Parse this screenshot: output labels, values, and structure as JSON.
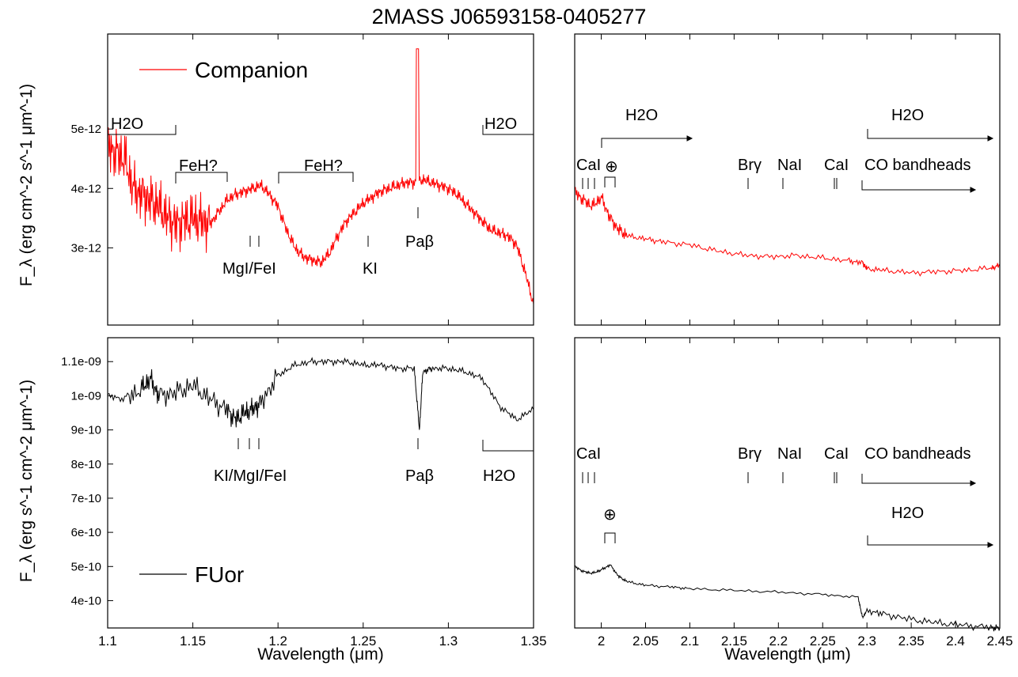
{
  "figure": {
    "title": "2MASS J06593158-0405277",
    "xlabel": "Wavelength (μm)",
    "ylabel_top": "F_λ (erg cm^-2 s^-1 μm^-1)",
    "ylabel_bottom": "F_λ (erg s^-1 cm^-2 μm^-1)"
  },
  "colors": {
    "companion": "#ff0000",
    "fuor": "#000000",
    "axes": "#000000"
  },
  "chart_data": [
    {
      "type": "line",
      "panel": "top-left",
      "xlim": [
        1.1,
        1.35
      ],
      "ylim": [
        1.7e-12,
        6.6e-12
      ],
      "x_ticks": [
        1.1,
        1.15,
        1.2,
        1.25,
        1.3,
        1.35
      ],
      "x_tick_labels": [
        "1.1",
        "1.15",
        "1.2",
        "1.25",
        "1.3",
        "1.35"
      ],
      "y_ticks": [
        3e-12,
        4e-12,
        5e-12
      ],
      "y_tick_labels": [
        "3e-12",
        "4e-12",
        "5e-12"
      ],
      "legend": {
        "label": "Companion",
        "position": "top-left"
      },
      "series": [
        {
          "name": "Companion",
          "x": [
            1.1,
            1.105,
            1.11,
            1.115,
            1.12,
            1.125,
            1.13,
            1.135,
            1.14,
            1.145,
            1.15,
            1.155,
            1.16,
            1.165,
            1.17,
            1.175,
            1.18,
            1.185,
            1.19,
            1.195,
            1.2,
            1.205,
            1.21,
            1.215,
            1.22,
            1.225,
            1.23,
            1.235,
            1.24,
            1.245,
            1.25,
            1.255,
            1.26,
            1.265,
            1.27,
            1.275,
            1.28,
            1.285,
            1.29,
            1.295,
            1.3,
            1.305,
            1.31,
            1.315,
            1.32,
            1.325,
            1.33,
            1.335,
            1.34,
            1.345,
            1.35
          ],
          "y": [
            4.7e-12,
            4.6e-12,
            4.5e-12,
            4e-12,
            3.9e-12,
            3.8e-12,
            3.7e-12,
            3.5e-12,
            3.4e-12,
            3.45e-12,
            3.5e-12,
            3.45e-12,
            3.4e-12,
            3.6e-12,
            3.8e-12,
            3.9e-12,
            3.95e-12,
            4e-12,
            4.05e-12,
            3.9e-12,
            3.7e-12,
            3.3e-12,
            3e-12,
            2.85e-12,
            2.8e-12,
            2.75e-12,
            2.9e-12,
            3.2e-12,
            3.45e-12,
            3.6e-12,
            3.75e-12,
            3.85e-12,
            3.95e-12,
            4e-12,
            4.05e-12,
            4.1e-12,
            4.1e-12,
            4.15e-12,
            4.1e-12,
            4.05e-12,
            4e-12,
            3.9e-12,
            3.75e-12,
            3.6e-12,
            3.45e-12,
            3.3e-12,
            3.25e-12,
            3.2e-12,
            3.05e-12,
            2.6e-12,
            2.05e-12
          ],
          "emission_peak": {
            "x": 1.282,
            "y": 6.35e-12
          }
        }
      ],
      "annotations": [
        "H2O",
        "FeH?",
        "FeH?",
        "MgI/FeI",
        "KI",
        "Paβ",
        "H2O"
      ]
    },
    {
      "type": "line",
      "panel": "top-right",
      "xlim": [
        1.97,
        2.45
      ],
      "ylim": [
        1.7e-12,
        6.6e-12
      ],
      "series": [
        {
          "name": "Companion",
          "x": [
            1.97,
            1.98,
            1.99,
            2.0,
            2.01,
            2.02,
            2.03,
            2.05,
            2.07,
            2.1,
            2.13,
            2.16,
            2.19,
            2.22,
            2.25,
            2.28,
            2.295,
            2.3,
            2.32,
            2.35,
            2.38,
            2.41,
            2.44,
            2.45
          ],
          "y": [
            3.95e-12,
            3.8e-12,
            3.7e-12,
            3.85e-12,
            3.5e-12,
            3.3e-12,
            3.2e-12,
            3.15e-12,
            3.1e-12,
            3.05e-12,
            2.95e-12,
            2.88e-12,
            2.85e-12,
            2.87e-12,
            2.83e-12,
            2.78e-12,
            2.75e-12,
            2.65e-12,
            2.62e-12,
            2.58e-12,
            2.6e-12,
            2.62e-12,
            2.66e-12,
            2.7e-12
          ]
        }
      ],
      "annotations": [
        "H2O",
        "H2O",
        "CaI",
        "⊕",
        "Brγ",
        "NaI",
        "CaI",
        "CO bandheads"
      ]
    },
    {
      "type": "line",
      "panel": "bottom-left",
      "xlim": [
        1.1,
        1.35
      ],
      "ylim": [
        3.2e-10,
        1.17e-09
      ],
      "y_ticks": [
        4e-10,
        5e-10,
        6e-10,
        7e-10,
        8e-10,
        9e-10,
        1e-09,
        1.1e-09
      ],
      "y_tick_labels": [
        "4e-10",
        "5e-10",
        "6e-10",
        "7e-10",
        "8e-10",
        "9e-10",
        "1e-09",
        "1.1e-09"
      ],
      "legend": {
        "label": "FUor",
        "position": "bottom-left"
      },
      "series": [
        {
          "name": "FUor",
          "x": [
            1.1,
            1.11,
            1.12,
            1.125,
            1.13,
            1.14,
            1.15,
            1.16,
            1.17,
            1.175,
            1.18,
            1.185,
            1.19,
            1.2,
            1.21,
            1.22,
            1.23,
            1.24,
            1.25,
            1.26,
            1.27,
            1.28,
            1.283,
            1.285,
            1.29,
            1.3,
            1.31,
            1.32,
            1.33,
            1.34,
            1.35
          ],
          "y": [
            1e-09,
            9.9e-10,
            1.02e-09,
            1.05e-09,
            1e-09,
            1.01e-09,
            1.03e-09,
            9.9e-10,
            9.6e-10,
            9.3e-10,
            9.5e-10,
            9.6e-10,
            9.8e-10,
            1.06e-09,
            1.09e-09,
            1.1e-09,
            1.1e-09,
            1.1e-09,
            1.09e-09,
            1.09e-09,
            1.08e-09,
            1.08e-09,
            9e-10,
            1.07e-09,
            1.08e-09,
            1.08e-09,
            1.07e-09,
            1.05e-09,
            9.7e-10,
            9.3e-10,
            9.6e-10
          ]
        }
      ],
      "annotations": [
        "KI/MgI/FeI",
        "Paβ",
        "H2O"
      ]
    },
    {
      "type": "line",
      "panel": "bottom-right",
      "xlim": [
        1.97,
        2.45
      ],
      "ylim": [
        3.2e-10,
        1.17e-09
      ],
      "x_ticks": [
        2.0,
        2.05,
        2.1,
        2.15,
        2.2,
        2.25,
        2.3,
        2.35,
        2.4,
        2.45
      ],
      "x_tick_labels": [
        "2",
        "2.05",
        "2.1",
        "2.15",
        "2.2",
        "2.25",
        "2.3",
        "2.35",
        "2.4",
        "2.45"
      ],
      "series": [
        {
          "name": "FUor",
          "x": [
            1.97,
            1.98,
            1.99,
            2.0,
            2.01,
            2.02,
            2.03,
            2.05,
            2.08,
            2.1,
            2.15,
            2.2,
            2.25,
            2.29,
            2.295,
            2.3,
            2.32,
            2.35,
            2.38,
            2.41,
            2.44,
            2.45
          ],
          "y": [
            5e-10,
            4.85e-10,
            4.8e-10,
            4.9e-10,
            5.05e-10,
            4.7e-10,
            4.55e-10,
            4.45e-10,
            4.4e-10,
            4.35e-10,
            4.3e-10,
            4.25e-10,
            4.18e-10,
            4.1e-10,
            3.5e-10,
            3.72e-10,
            3.6e-10,
            3.45e-10,
            3.35e-10,
            3.28e-10,
            3.22e-10,
            3.2e-10
          ]
        }
      ],
      "annotations": [
        "CaI",
        "Brγ",
        "NaI",
        "CaI",
        "CO bandheads",
        "⊕",
        "H2O"
      ]
    }
  ]
}
